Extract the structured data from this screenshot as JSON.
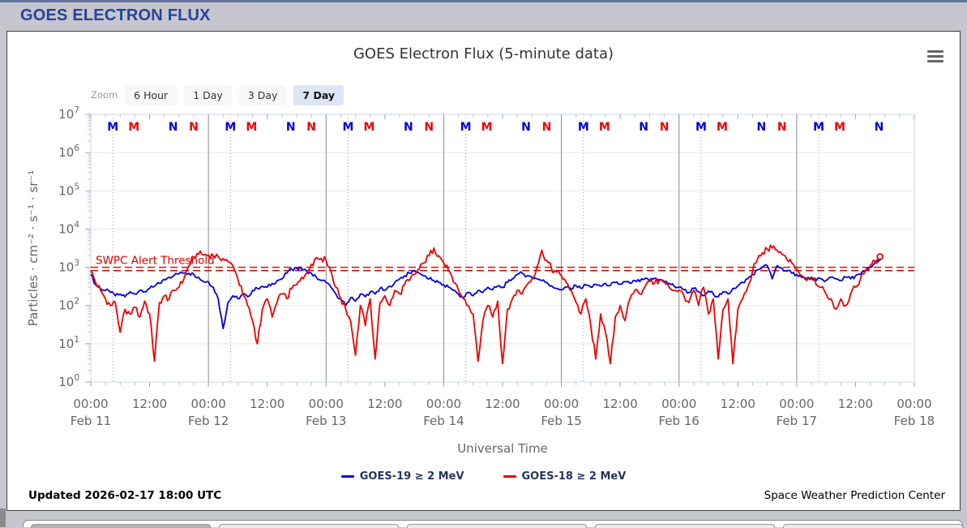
{
  "page": {
    "header_title": "GOES ELECTRON FLUX",
    "footer_updated": "Updated 2026-02-17 18:00 UTC",
    "footer_credit": "Space Weather Prediction Center",
    "bottom_tab_count": 5
  },
  "toolbar": {
    "zoom_label": "Zoom",
    "buttons": [
      "6 Hour",
      "1 Day",
      "3 Day",
      "7 Day"
    ],
    "selected": "7 Day"
  },
  "chart_data": {
    "type": "line",
    "title": "GOES Electron Flux (5-minute data)",
    "xlabel": "Universal Time",
    "ylabel": "Particles · cm⁻² · s⁻¹ · sr⁻¹",
    "y_scale": "log",
    "y_exponents": [
      0,
      1,
      2,
      3,
      4,
      5,
      6,
      7
    ],
    "x_days": [
      "Feb 11",
      "Feb 12",
      "Feb 13",
      "Feb 14",
      "Feb 15",
      "Feb 16",
      "Feb 17",
      "Feb 18"
    ],
    "x_hour_labels": [
      "00:00",
      "12:00"
    ],
    "x_time_span_hours": 168,
    "data_end_hour": 161,
    "grid": true,
    "legend_position": "bottom",
    "threshold": {
      "label": "SWPC Alert Threshold",
      "values": [
        1000,
        820
      ],
      "color": "#dd0000"
    },
    "satellite_markers": [
      {
        "letter": "M",
        "color": "#0000dd",
        "hour_utc": 4.5,
        "dotted_gridline": true
      },
      {
        "letter": "M",
        "color": "#ee0000",
        "hour_utc": 8.8,
        "dotted_gridline": false
      },
      {
        "letter": "N",
        "color": "#0000dd",
        "hour_utc": 16.8,
        "dotted_gridline": false
      },
      {
        "letter": "N",
        "color": "#ee0000",
        "hour_utc": 21.0,
        "dotted_gridline": false
      }
    ],
    "series": [
      {
        "name": "GOES-19 ≥ 2 MeV",
        "color": "#0000dd",
        "t_step_hours": 1,
        "values": [
          650,
          350,
          280,
          250,
          220,
          180,
          200,
          170,
          230,
          200,
          250,
          230,
          280,
          320,
          380,
          480,
          550,
          620,
          680,
          720,
          700,
          650,
          550,
          420,
          420,
          300,
          150,
          25,
          120,
          180,
          150,
          200,
          170,
          250,
          280,
          320,
          300,
          380,
          450,
          500,
          700,
          900,
          950,
          900,
          800,
          700,
          550,
          450,
          400,
          300,
          200,
          150,
          100,
          160,
          130,
          200,
          170,
          230,
          200,
          280,
          250,
          320,
          400,
          500,
          600,
          700,
          800,
          700,
          600,
          500,
          450,
          400,
          350,
          300,
          250,
          200,
          160,
          220,
          180,
          250,
          220,
          300,
          260,
          320,
          300,
          400,
          500,
          650,
          700,
          600,
          550,
          500,
          450,
          400,
          330,
          280,
          260,
          300,
          270,
          330,
          280,
          350,
          300,
          360,
          320,
          380,
          340,
          400,
          360,
          420,
          380,
          450,
          420,
          500,
          450,
          520,
          480,
          420,
          380,
          320,
          300,
          260,
          220,
          280,
          230,
          180,
          240,
          200,
          170,
          230,
          200,
          280,
          330,
          400,
          500,
          650,
          850,
          1000,
          1100,
          500,
          1100,
          950,
          800,
          700,
          650,
          550,
          500,
          550,
          450,
          500,
          450,
          550,
          500,
          450,
          550,
          500,
          600,
          650,
          800,
          1000,
          1300,
          1700
        ]
      },
      {
        "name": "GOES-18 ≥ 2 MeV",
        "color": "#ee0000",
        "t_step_hours": 1,
        "values": [
          800,
          400,
          250,
          150,
          100,
          120,
          20,
          80,
          60,
          90,
          50,
          130,
          60,
          3.5,
          120,
          180,
          150,
          250,
          300,
          500,
          1100,
          1900,
          2200,
          2100,
          2100,
          2000,
          1900,
          1700,
          1400,
          1100,
          500,
          200,
          100,
          40,
          10,
          80,
          150,
          50,
          120,
          200,
          150,
          280,
          350,
          550,
          700,
          1200,
          1800,
          1700,
          1500,
          800,
          300,
          150,
          80,
          40,
          5,
          100,
          30,
          150,
          4,
          120,
          180,
          100,
          250,
          200,
          350,
          450,
          650,
          900,
          1300,
          2000,
          3200,
          2000,
          1300,
          800,
          400,
          250,
          150,
          100,
          60,
          3.5,
          40,
          100,
          50,
          130,
          3,
          80,
          150,
          250,
          200,
          350,
          500,
          1000,
          2800,
          1500,
          900,
          750,
          600,
          400,
          250,
          120,
          60,
          150,
          30,
          4,
          60,
          20,
          3,
          50,
          100,
          40,
          150,
          250,
          200,
          300,
          420,
          380,
          450,
          400,
          300,
          250,
          250,
          180,
          120,
          250,
          100,
          300,
          60,
          150,
          4,
          80,
          150,
          3,
          80,
          150,
          300,
          800,
          1600,
          2400,
          3000,
          3200,
          2800,
          2200,
          1600,
          1300,
          900,
          600,
          450,
          500,
          350,
          300,
          200,
          150,
          80,
          150,
          100,
          200,
          300,
          500,
          800,
          1100,
          1400,
          1900
        ]
      }
    ]
  }
}
